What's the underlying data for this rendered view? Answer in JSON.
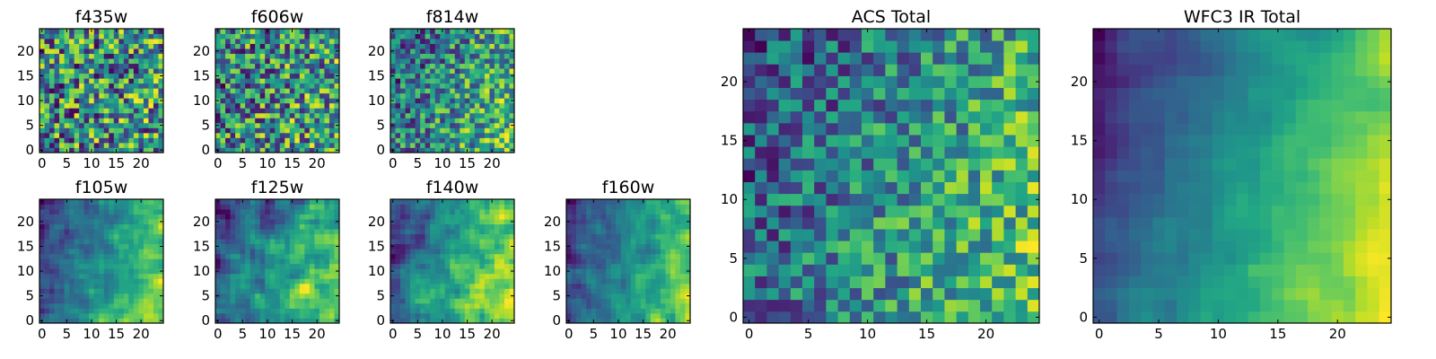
{
  "chart_data": {
    "type": "heatmap",
    "colormap": "viridis",
    "grid": false,
    "colors": {
      "low": "#440154",
      "mid": "#21918c",
      "high": "#fde725"
    },
    "panels": [
      {
        "id": "f435w",
        "title": "f435w",
        "grid_size": 25,
        "xlim": [
          0,
          24
        ],
        "ylim": [
          0,
          24
        ],
        "xticks": [
          0,
          5,
          10,
          15,
          20
        ],
        "yticks": [
          0,
          5,
          10,
          15,
          20
        ],
        "texture": "noise",
        "trend": 0.08,
        "noise": 0.9,
        "seed": 11
      },
      {
        "id": "f606w",
        "title": "f606w",
        "grid_size": 25,
        "xlim": [
          0,
          24
        ],
        "ylim": [
          0,
          24
        ],
        "xticks": [
          0,
          5,
          10,
          15,
          20
        ],
        "yticks": [
          0,
          5,
          10,
          15,
          20
        ],
        "texture": "noise",
        "trend": 0.15,
        "noise": 0.85,
        "seed": 23
      },
      {
        "id": "f814w",
        "title": "f814w",
        "grid_size": 25,
        "xlim": [
          0,
          24
        ],
        "ylim": [
          0,
          24
        ],
        "xticks": [
          0,
          5,
          10,
          15,
          20
        ],
        "yticks": [
          0,
          5,
          10,
          15,
          20
        ],
        "texture": "noise",
        "trend": 0.35,
        "noise": 0.65,
        "seed": 37
      },
      {
        "id": "f105w",
        "title": "f105w",
        "grid_size": 25,
        "xlim": [
          0,
          24
        ],
        "ylim": [
          0,
          24
        ],
        "xticks": [
          0,
          5,
          10,
          15,
          20
        ],
        "yticks": [
          0,
          5,
          10,
          15,
          20
        ],
        "texture": "smooth",
        "trend": 0.6,
        "noise": 0.4,
        "seed": 41
      },
      {
        "id": "f125w",
        "title": "f125w",
        "grid_size": 25,
        "xlim": [
          0,
          24
        ],
        "ylim": [
          0,
          24
        ],
        "xticks": [
          0,
          5,
          10,
          15,
          20
        ],
        "yticks": [
          0,
          5,
          10,
          15,
          20
        ],
        "texture": "smooth",
        "trend": 0.55,
        "noise": 0.45,
        "seed": 53
      },
      {
        "id": "f140w",
        "title": "f140w",
        "grid_size": 25,
        "xlim": [
          0,
          24
        ],
        "ylim": [
          0,
          24
        ],
        "xticks": [
          0,
          5,
          10,
          15,
          20
        ],
        "yticks": [
          0,
          5,
          10,
          15,
          20
        ],
        "texture": "smooth",
        "trend": 0.6,
        "noise": 0.4,
        "seed": 67
      },
      {
        "id": "f160w",
        "title": "f160w",
        "grid_size": 25,
        "xlim": [
          0,
          24
        ],
        "ylim": [
          0,
          24
        ],
        "xticks": [
          0,
          5,
          10,
          15,
          20
        ],
        "yticks": [
          0,
          5,
          10,
          15,
          20
        ],
        "texture": "smooth",
        "trend": 0.6,
        "noise": 0.4,
        "seed": 79
      },
      {
        "id": "acs-total",
        "title": "ACS Total",
        "grid_size": 25,
        "xlim": [
          0,
          24
        ],
        "ylim": [
          0,
          24
        ],
        "xticks": [
          0,
          5,
          10,
          15,
          20
        ],
        "yticks": [
          0,
          5,
          10,
          15,
          20
        ],
        "texture": "noise",
        "trend": 0.45,
        "noise": 0.55,
        "seed": 97
      },
      {
        "id": "wfc3-ir-total",
        "title": "WFC3 IR Total",
        "grid_size": 25,
        "xlim": [
          0,
          24
        ],
        "ylim": [
          0,
          24
        ],
        "xticks": [
          0,
          5,
          10,
          15,
          20
        ],
        "yticks": [
          0,
          5,
          10,
          15,
          20
        ],
        "texture": "smooth",
        "trend": 0.8,
        "noise": 0.2,
        "seed": 113
      }
    ]
  }
}
